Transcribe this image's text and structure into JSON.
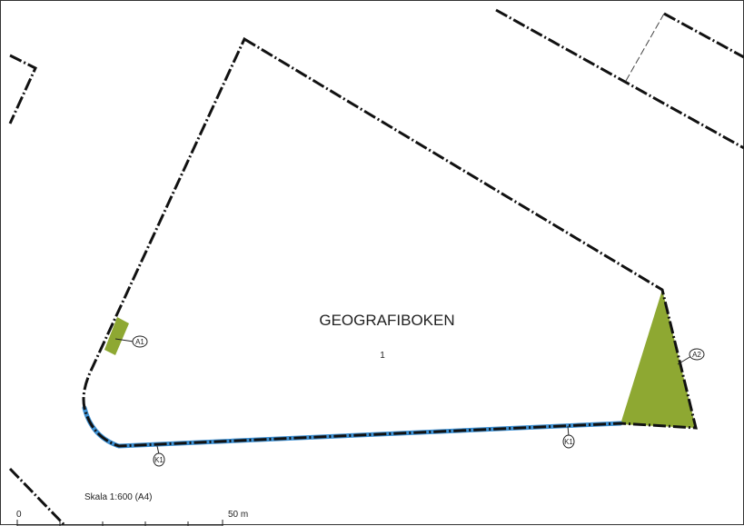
{
  "property": {
    "name": "GEOGRAFIBOKEN",
    "number": "1"
  },
  "markers": {
    "a1": "A1",
    "a2": "A2",
    "k1_left": "K1",
    "k1_right": "K1"
  },
  "scale": {
    "caption": "Skala 1:600 (A4)",
    "start": "0",
    "end": "50 m"
  },
  "colors": {
    "area_fill": "#8ea832",
    "line_k1": "#3d8fd1",
    "boundary": "#111111",
    "background": "#ffffff"
  }
}
